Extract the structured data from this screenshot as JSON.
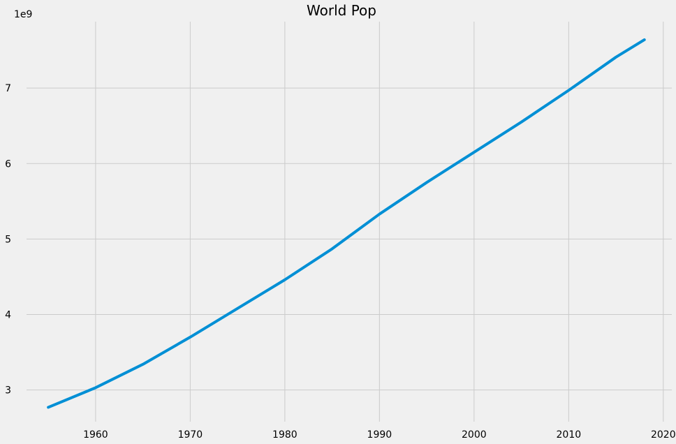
{
  "chart_data": {
    "type": "line",
    "title": "World Pop",
    "xlabel": "",
    "ylabel": "",
    "y_offset_label": "1e9",
    "xlim": [
      1952.7,
      2020.9
    ],
    "ylim": [
      2.58,
      7.88
    ],
    "x_ticks": [
      1960,
      1970,
      1980,
      1990,
      2000,
      2010,
      2020
    ],
    "x_tick_labels": [
      "1960",
      "1970",
      "1980",
      "1990",
      "2000",
      "2010",
      "2020"
    ],
    "y_ticks": [
      3,
      4,
      5,
      6,
      7
    ],
    "y_tick_labels": [
      "3",
      "4",
      "5",
      "6",
      "7"
    ],
    "grid": true,
    "legend": "none",
    "series": [
      {
        "x": [
          1955,
          1960,
          1965,
          1970,
          1975,
          1980,
          1985,
          1990,
          1995,
          2000,
          2005,
          2010,
          2015,
          2018
        ],
        "values": [
          2.77,
          3.03,
          3.34,
          3.7,
          4.08,
          4.46,
          4.87,
          5.33,
          5.75,
          6.15,
          6.55,
          6.97,
          7.41,
          7.64
        ],
        "color": "#008fd5"
      }
    ]
  }
}
